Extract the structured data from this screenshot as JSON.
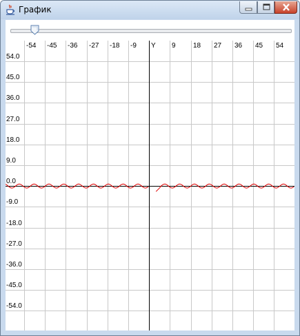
{
  "window": {
    "title": "График"
  },
  "slider": {
    "value_fraction": 0.085
  },
  "graph": {
    "x_ticks": [
      "-54",
      "-45",
      "-36",
      "-27",
      "-18",
      "-9",
      "Y",
      "9",
      "18",
      "27",
      "36",
      "45",
      "54"
    ],
    "y_ticks": [
      "54.0",
      "45.0",
      "36.0",
      "27.0",
      "18.0",
      "9.0",
      "0.0",
      "-9.0",
      "-18.0",
      "-27.0",
      "-36.0",
      "-45.0",
      "-54.0"
    ],
    "grid_color": "#c8c8c8",
    "axis_color": "#000000",
    "curve_color": "#e00000"
  }
}
